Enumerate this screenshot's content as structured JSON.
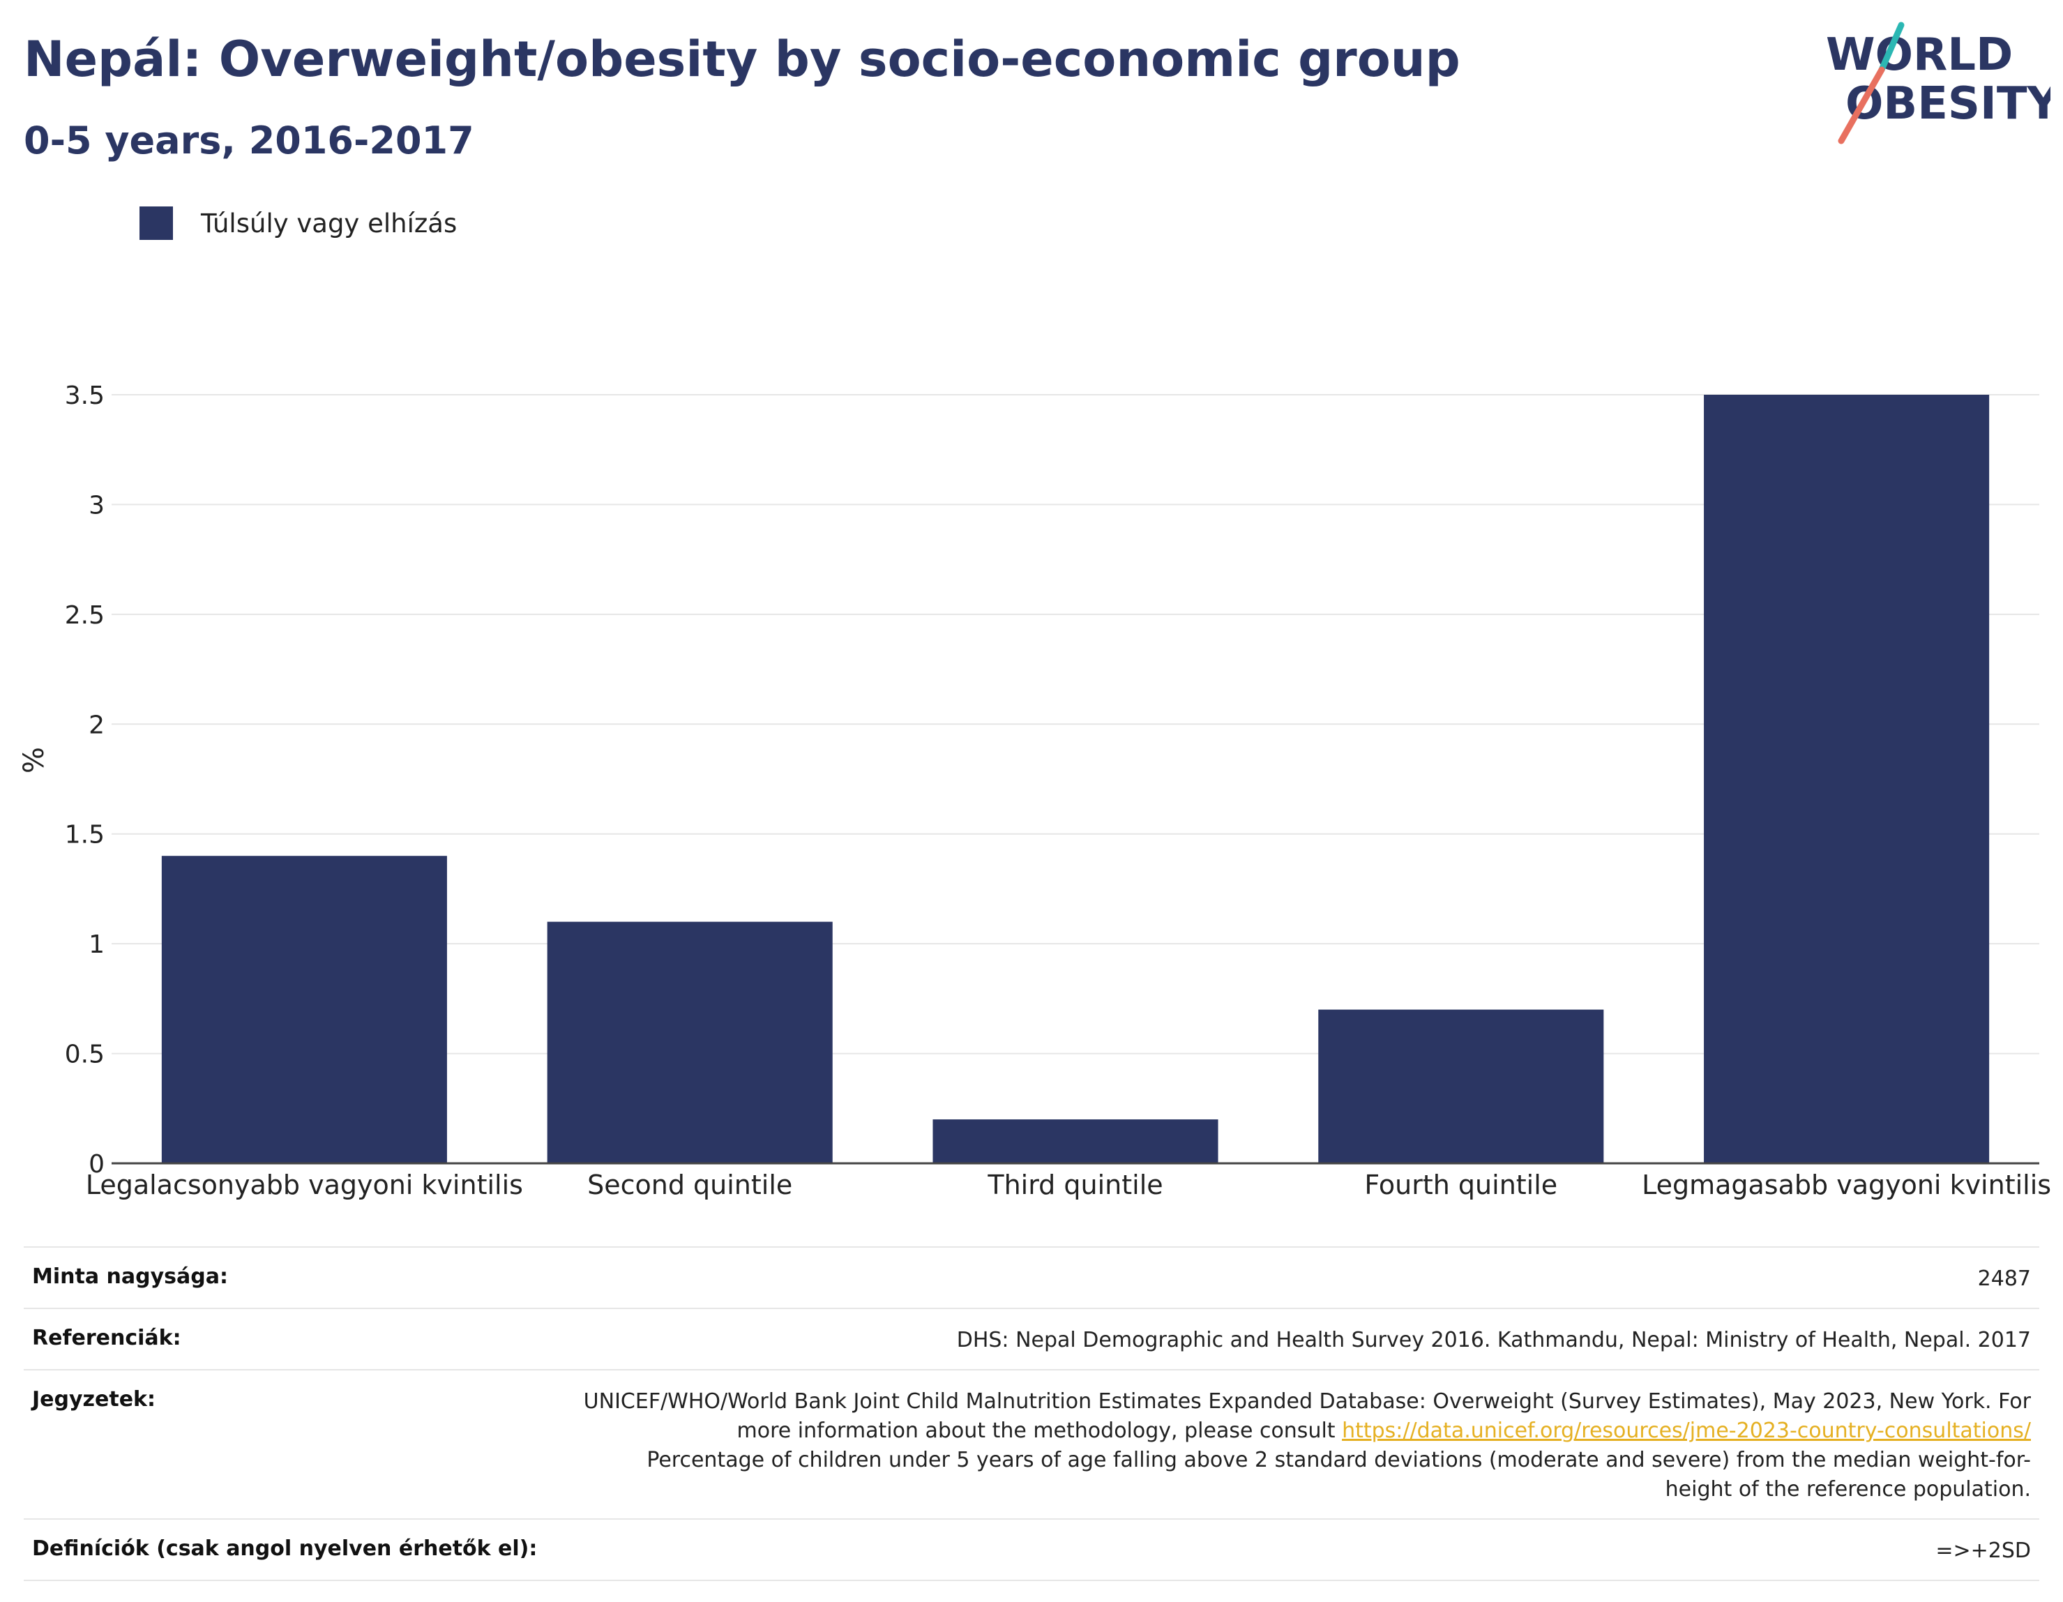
{
  "header": {
    "title": "Nepál: Overweight/obesity by socio-economic group",
    "subtitle": "0-5 years, 2016-2017",
    "logo_line1": "WORLD",
    "logo_line2": "OBESITY"
  },
  "legend": {
    "label": "Túlsúly vagy elhízás"
  },
  "chart_data": {
    "type": "bar",
    "categories": [
      "Legalacsonyabb vagyoni kvintilis",
      "Second quintile",
      "Third quintile",
      "Fourth quintile",
      "Legmagasabb vagyoni kvintilis"
    ],
    "series": [
      {
        "name": "Túlsúly vagy elhízás",
        "values": [
          1.4,
          1.1,
          0.2,
          0.7,
          3.5
        ]
      }
    ],
    "ylabel": "%",
    "xlabel": "",
    "ylim": [
      0,
      3.5
    ],
    "yticks": [
      0,
      0.5,
      1,
      1.5,
      2,
      2.5,
      3,
      3.5
    ],
    "ytick_labels": [
      "0",
      "0.5",
      "1",
      "1.5",
      "2",
      "2.5",
      "3",
      "3.5"
    ],
    "grid": true,
    "legend_position": "top-left",
    "bar_color": "#2b3663"
  },
  "meta": {
    "sample_label": "Minta nagysága:",
    "sample_value": "2487",
    "references_label": "Referenciák:",
    "references_value": "DHS: Nepal Demographic and Health Survey 2016. Kathmandu, Nepal: Ministry of Health, Nepal. 2017",
    "notes_label": "Jegyzetek:",
    "notes_text1": "UNICEF/WHO/World Bank Joint Child Malnutrition Estimates Expanded Database: Overweight (Survey Estimates), May 2023, New York. For more information about the methodology, please consult ",
    "notes_link": "https://data.unicef.org/resources/jme-2023-country-consultations/",
    "notes_text2": "Percentage of children under 5 years of age falling above 2 standard deviations (moderate and severe) from the median weight-for-height of the reference population.",
    "definitions_label": "Definíciók (csak angol nyelven érhetők el):",
    "definitions_value": "=>+2SD"
  }
}
